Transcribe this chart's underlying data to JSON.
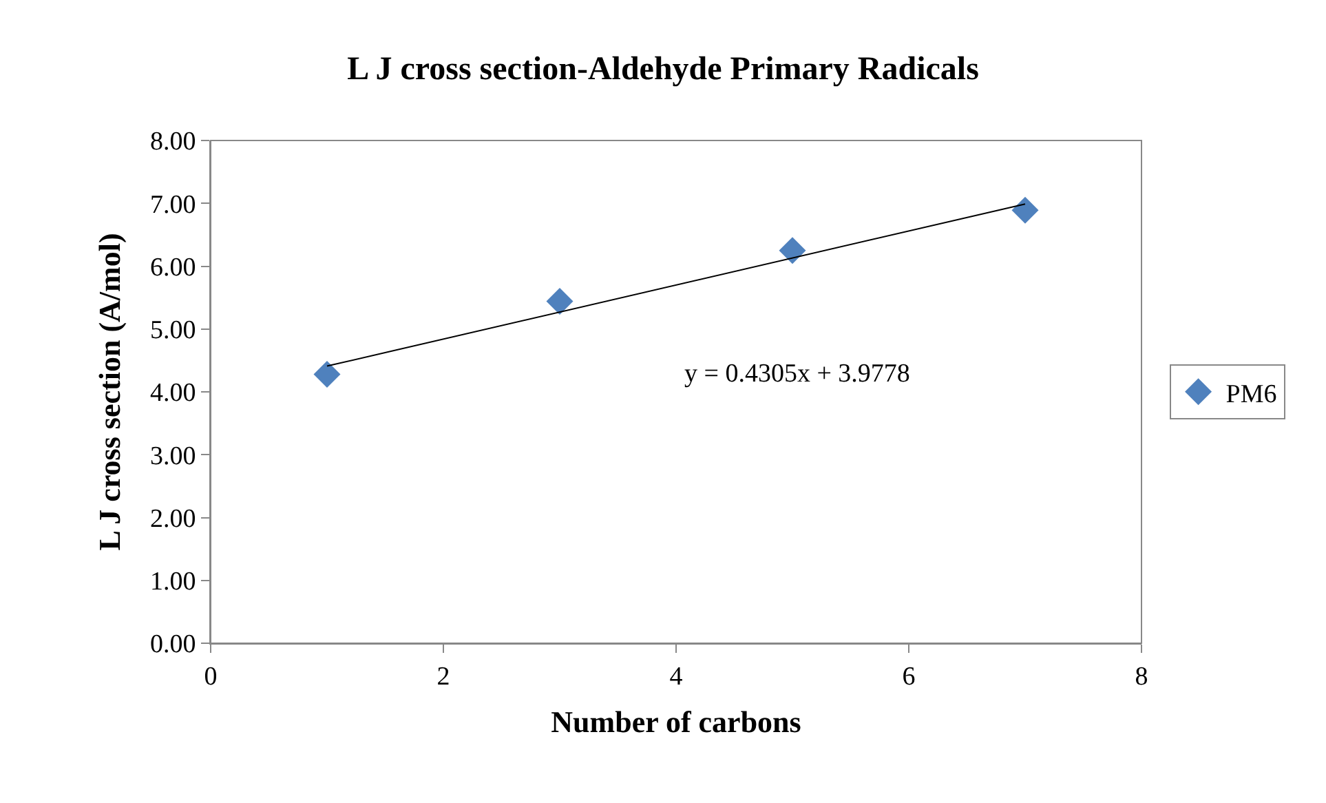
{
  "chart_data": {
    "type": "scatter",
    "title": "L J cross section-Aldehyde Primary Radicals",
    "xlabel": "Number of carbons",
    "ylabel": "L J cross section (A/mol)",
    "series": [
      {
        "name": "PM6",
        "color": "#4f81bd",
        "x": [
          1,
          3,
          5,
          7
        ],
        "values": [
          4.28,
          5.44,
          6.25,
          6.89
        ],
        "marker": "diamond"
      },
      {
        "type": "line",
        "color": "#000000",
        "x": [
          1,
          7
        ],
        "values": [
          4.41,
          6.99
        ],
        "marker": "none",
        "line_style": "solid"
      }
    ],
    "annotations": [
      "y = 0.4305x + 3.9778"
    ],
    "xlim": [
      0,
      8
    ],
    "xticks": [
      0,
      2,
      4,
      6,
      8
    ],
    "ylim": [
      0,
      8
    ],
    "yticks": [
      {
        "value": 0,
        "label": "0.00"
      },
      {
        "value": 1,
        "label": "1.00"
      },
      {
        "value": 2,
        "label": "2.00"
      },
      {
        "value": 3,
        "label": "3.00"
      },
      {
        "value": 4,
        "label": "4.00"
      },
      {
        "value": 5,
        "label": "5.00"
      },
      {
        "value": 6,
        "label": "6.00"
      },
      {
        "value": 7,
        "label": "7.00"
      },
      {
        "value": 8,
        "label": "8.00"
      }
    ],
    "legend": "right"
  }
}
